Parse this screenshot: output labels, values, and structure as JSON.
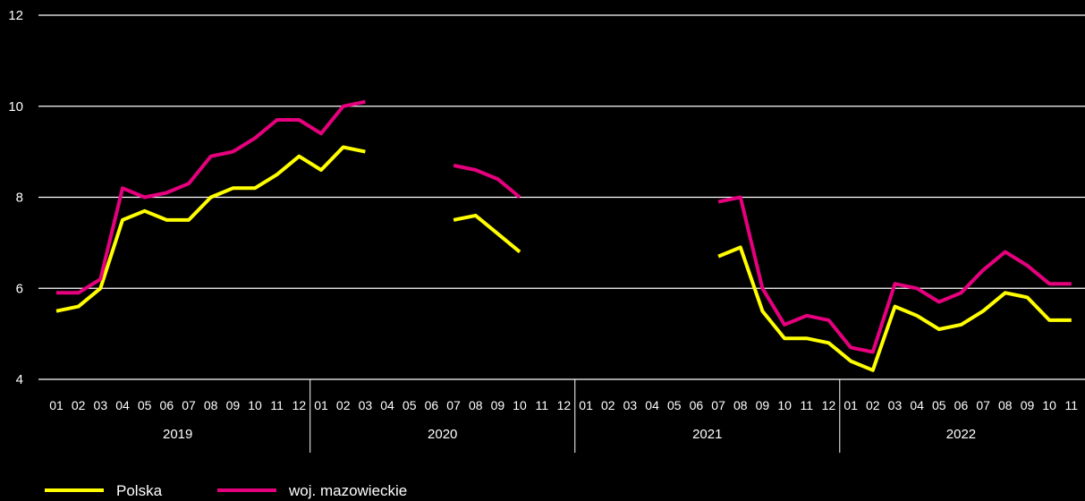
{
  "chart_data": {
    "type": "line",
    "ylim": [
      4,
      12
    ],
    "yticks": [
      "4",
      "6",
      "8",
      "10",
      "12"
    ],
    "grid": true,
    "legend_position": "bottom-left",
    "years": [
      {
        "label": "2019",
        "months": [
          "01",
          "02",
          "03",
          "04",
          "05",
          "06",
          "07",
          "08",
          "09",
          "10",
          "11",
          "12"
        ]
      },
      {
        "label": "2020",
        "months": [
          "01",
          "02",
          "03",
          "04",
          "05",
          "06",
          "07",
          "08",
          "09",
          "10",
          "11",
          "12"
        ]
      },
      {
        "label": "2021",
        "months": [
          "01",
          "02",
          "03",
          "04",
          "05",
          "06",
          "07",
          "08",
          "09",
          "10",
          "11",
          "12"
        ]
      },
      {
        "label": "2022",
        "months": [
          "01",
          "02",
          "03",
          "04",
          "05",
          "06",
          "07",
          "08",
          "09",
          "10",
          "11"
        ]
      }
    ],
    "series": [
      {
        "name": "Polska",
        "color": "#ffff00",
        "values": [
          5.5,
          5.6,
          6.0,
          7.5,
          7.7,
          7.5,
          7.5,
          8.0,
          8.2,
          8.2,
          8.5,
          8.9,
          8.6,
          9.1,
          9.0,
          null,
          null,
          null,
          7.5,
          7.6,
          7.2,
          6.8,
          null,
          null,
          null,
          null,
          null,
          null,
          null,
          null,
          6.7,
          6.9,
          5.5,
          4.9,
          4.9,
          4.8,
          4.4,
          4.2,
          5.6,
          5.4,
          5.1,
          5.2,
          5.5,
          5.9,
          5.8,
          5.3,
          5.3
        ]
      },
      {
        "name": "woj. mazowieckie",
        "color": "#e6007e",
        "values": [
          5.9,
          5.9,
          6.2,
          8.2,
          8.0,
          8.1,
          8.3,
          8.9,
          9.0,
          9.3,
          9.7,
          9.7,
          9.4,
          10.0,
          10.1,
          null,
          null,
          null,
          8.7,
          8.6,
          8.4,
          8.0,
          null,
          null,
          null,
          null,
          null,
          null,
          null,
          null,
          7.9,
          8.0,
          6.0,
          5.2,
          5.4,
          5.3,
          4.7,
          4.6,
          6.1,
          6.0,
          5.7,
          5.9,
          6.4,
          6.8,
          6.5,
          6.1,
          6.1
        ]
      }
    ]
  }
}
